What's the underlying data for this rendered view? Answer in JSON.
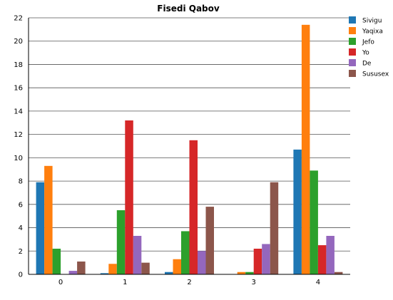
{
  "chart_data": {
    "type": "bar",
    "title": "Fisedi Qabov",
    "xlabel": "",
    "ylabel": "",
    "categories": [
      "0",
      "1",
      "2",
      "3",
      "4"
    ],
    "ylim": [
      0,
      22
    ],
    "yticks": [
      0,
      2,
      4,
      6,
      8,
      10,
      12,
      14,
      16,
      18,
      20,
      22
    ],
    "grid": true,
    "legend_position": "top-right",
    "series": [
      {
        "name": "Sivigu",
        "color": "#1f77b4",
        "values": [
          7.9,
          0.1,
          0.2,
          0.0,
          10.7
        ]
      },
      {
        "name": "Yaqixa",
        "color": "#ff7f0e",
        "values": [
          9.3,
          0.9,
          1.3,
          0.2,
          21.4
        ]
      },
      {
        "name": "Jefo",
        "color": "#2ca02c",
        "values": [
          2.2,
          5.5,
          3.7,
          0.2,
          8.9
        ]
      },
      {
        "name": "Yo",
        "color": "#d62728",
        "values": [
          0.0,
          13.2,
          11.5,
          2.2,
          2.5
        ]
      },
      {
        "name": "De",
        "color": "#9467bd",
        "values": [
          0.3,
          3.3,
          2.0,
          2.6,
          3.3
        ]
      },
      {
        "name": "Sususex",
        "color": "#8c564b",
        "values": [
          1.1,
          1.0,
          5.8,
          7.9,
          0.2
        ]
      }
    ]
  }
}
